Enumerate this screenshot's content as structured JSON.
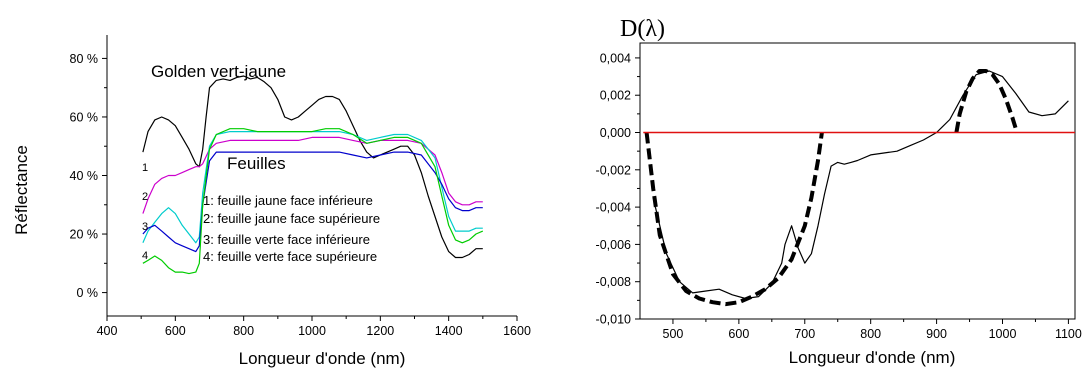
{
  "chart_data": [
    {
      "type": "line",
      "title": "",
      "xlabel": "Longueur d'onde (nm)",
      "ylabel": "Réflectance",
      "xlim": [
        400,
        1600
      ],
      "ylim": [
        -0.08,
        0.88
      ],
      "xticks": [
        400,
        600,
        800,
        1000,
        1200,
        1400,
        1600
      ],
      "xtick_labels": [
        "400",
        "600",
        "800",
        "1000",
        "1200",
        "1400",
        "1600"
      ],
      "yticks": [
        0,
        0.2,
        0.4,
        0.6,
        0.8
      ],
      "ytick_labels": [
        "0 %",
        "20 %",
        "40 %",
        "60 %",
        "80 %"
      ],
      "annotations": {
        "golden": "Golden vert-jaune",
        "feuilles": "Feuilles",
        "markers": [
          "1",
          "2",
          "3",
          "4"
        ],
        "legend": [
          "1: feuille jaune face inférieure",
          "2: feuille jaune face supérieure",
          "3: feuille verte face inférieure",
          "4: feuille verte face supérieure"
        ]
      },
      "series": [
        {
          "name": "Golden vert-jaune",
          "color": "#000000",
          "x": [
            505,
            520,
            540,
            560,
            580,
            600,
            620,
            640,
            660,
            670,
            680,
            690,
            700,
            720,
            740,
            760,
            780,
            800,
            820,
            840,
            860,
            880,
            900,
            920,
            940,
            960,
            980,
            1000,
            1020,
            1040,
            1060,
            1080,
            1100,
            1120,
            1140,
            1160,
            1180,
            1200,
            1220,
            1240,
            1260,
            1280,
            1300,
            1320,
            1340,
            1360,
            1380,
            1400,
            1420,
            1440,
            1460,
            1480,
            1500
          ],
          "y": [
            0.48,
            0.55,
            0.59,
            0.6,
            0.59,
            0.57,
            0.53,
            0.49,
            0.44,
            0.43,
            0.49,
            0.6,
            0.7,
            0.725,
            0.73,
            0.725,
            0.735,
            0.74,
            0.73,
            0.735,
            0.72,
            0.7,
            0.66,
            0.6,
            0.59,
            0.6,
            0.62,
            0.64,
            0.66,
            0.67,
            0.67,
            0.66,
            0.62,
            0.57,
            0.52,
            0.48,
            0.46,
            0.47,
            0.48,
            0.49,
            0.5,
            0.5,
            0.47,
            0.41,
            0.33,
            0.26,
            0.19,
            0.14,
            0.12,
            0.12,
            0.13,
            0.15,
            0.15
          ]
        },
        {
          "name": "1",
          "color": "#cc00cc",
          "x": [
            505,
            520,
            540,
            560,
            580,
            600,
            620,
            640,
            660,
            670,
            680,
            700,
            720,
            760,
            800,
            840,
            880,
            920,
            960,
            1000,
            1040,
            1080,
            1120,
            1160,
            1200,
            1240,
            1280,
            1320,
            1360,
            1380,
            1400,
            1420,
            1440,
            1460,
            1480,
            1500
          ],
          "y": [
            0.27,
            0.32,
            0.37,
            0.39,
            0.4,
            0.4,
            0.41,
            0.42,
            0.43,
            0.43,
            0.44,
            0.49,
            0.51,
            0.52,
            0.52,
            0.52,
            0.52,
            0.52,
            0.52,
            0.53,
            0.53,
            0.53,
            0.52,
            0.51,
            0.52,
            0.52,
            0.52,
            0.51,
            0.47,
            0.41,
            0.34,
            0.31,
            0.3,
            0.3,
            0.31,
            0.31
          ]
        },
        {
          "name": "2",
          "color": "#00cccc",
          "x": [
            505,
            520,
            540,
            560,
            580,
            600,
            620,
            640,
            660,
            670,
            680,
            700,
            720,
            760,
            800,
            840,
            880,
            920,
            960,
            1000,
            1040,
            1080,
            1120,
            1160,
            1200,
            1240,
            1280,
            1320,
            1360,
            1380,
            1400,
            1420,
            1440,
            1460,
            1480,
            1500
          ],
          "y": [
            0.17,
            0.21,
            0.24,
            0.27,
            0.29,
            0.27,
            0.23,
            0.2,
            0.17,
            0.19,
            0.34,
            0.5,
            0.54,
            0.55,
            0.55,
            0.55,
            0.55,
            0.55,
            0.55,
            0.55,
            0.55,
            0.55,
            0.54,
            0.52,
            0.53,
            0.54,
            0.54,
            0.52,
            0.46,
            0.36,
            0.26,
            0.21,
            0.21,
            0.21,
            0.22,
            0.22
          ]
        },
        {
          "name": "3",
          "color": "#0000cc",
          "x": [
            505,
            520,
            540,
            560,
            580,
            600,
            620,
            640,
            660,
            670,
            680,
            700,
            720,
            760,
            800,
            840,
            880,
            920,
            960,
            1000,
            1040,
            1080,
            1120,
            1160,
            1200,
            1240,
            1280,
            1320,
            1360,
            1380,
            1400,
            1420,
            1440,
            1460,
            1480,
            1500
          ],
          "y": [
            0.2,
            0.22,
            0.23,
            0.21,
            0.19,
            0.17,
            0.16,
            0.15,
            0.14,
            0.16,
            0.3,
            0.45,
            0.48,
            0.48,
            0.48,
            0.48,
            0.48,
            0.48,
            0.48,
            0.48,
            0.48,
            0.48,
            0.47,
            0.46,
            0.47,
            0.48,
            0.48,
            0.47,
            0.41,
            0.37,
            0.32,
            0.29,
            0.28,
            0.28,
            0.29,
            0.29
          ]
        },
        {
          "name": "4",
          "color": "#00cc00",
          "x": [
            505,
            520,
            540,
            560,
            580,
            600,
            620,
            640,
            660,
            670,
            680,
            700,
            720,
            760,
            800,
            840,
            880,
            920,
            960,
            1000,
            1040,
            1080,
            1120,
            1160,
            1200,
            1240,
            1280,
            1320,
            1360,
            1380,
            1400,
            1420,
            1440,
            1460,
            1480,
            1500
          ],
          "y": [
            0.1,
            0.11,
            0.125,
            0.11,
            0.085,
            0.07,
            0.07,
            0.065,
            0.07,
            0.1,
            0.3,
            0.49,
            0.54,
            0.56,
            0.56,
            0.55,
            0.55,
            0.55,
            0.55,
            0.55,
            0.56,
            0.56,
            0.54,
            0.51,
            0.52,
            0.53,
            0.53,
            0.51,
            0.43,
            0.33,
            0.23,
            0.18,
            0.17,
            0.18,
            0.2,
            0.21
          ]
        }
      ]
    },
    {
      "type": "line",
      "title": "D(λ)",
      "xlabel": "Longueur d'onde (nm)",
      "ylabel": "",
      "xlim": [
        450,
        1110
      ],
      "ylim": [
        -0.01,
        0.0048
      ],
      "xticks": [
        500,
        600,
        700,
        800,
        900,
        1000,
        1100
      ],
      "xtick_labels": [
        "500",
        "600",
        "700",
        "800",
        "900",
        "1000",
        "1100"
      ],
      "yticks": [
        -0.01,
        -0.008,
        -0.006,
        -0.004,
        -0.002,
        0,
        0.002,
        0.004
      ],
      "ytick_labels": [
        "-0,010",
        "-0,008",
        "-0,006",
        "-0,004",
        "-0,002",
        "0,000",
        "0,002",
        "0,004"
      ],
      "series": [
        {
          "name": "",
          "style": "solid",
          "color": "#000000",
          "x": [
            470,
            490,
            510,
            530,
            550,
            570,
            590,
            610,
            630,
            650,
            665,
            670,
            675,
            680,
            690,
            700,
            710,
            720,
            730,
            740,
            750,
            760,
            770,
            780,
            800,
            820,
            840,
            860,
            880,
            900,
            920,
            940,
            960,
            980,
            1000,
            1020,
            1040,
            1060,
            1080,
            1100
          ],
          "y": [
            -0.0035,
            -0.0065,
            -0.008,
            -0.0086,
            -0.0085,
            -0.0084,
            -0.0087,
            -0.0089,
            -0.0088,
            -0.0081,
            -0.007,
            -0.006,
            -0.0055,
            -0.005,
            -0.0062,
            -0.007,
            -0.0065,
            -0.005,
            -0.0033,
            -0.0018,
            -0.0016,
            -0.0017,
            -0.0016,
            -0.0015,
            -0.0012,
            -0.0011,
            -0.001,
            -0.0007,
            -0.0004,
            0.0,
            0.0007,
            0.002,
            0.0031,
            0.0033,
            0.003,
            0.0021,
            0.0011,
            0.0009,
            0.001,
            0.0017
          ]
        },
        {
          "name": "",
          "style": "dashed",
          "color": "#000000",
          "x": [
            460,
            470,
            480,
            500,
            520,
            540,
            560,
            580,
            600,
            620,
            640,
            660,
            680,
            700,
            710,
            720,
            726
          ],
          "y": [
            0.0,
            -0.003,
            -0.0055,
            -0.0076,
            -0.0085,
            -0.0089,
            -0.0091,
            -0.0092,
            -0.0091,
            -0.0088,
            -0.0084,
            -0.0078,
            -0.0068,
            -0.005,
            -0.0035,
            -0.0015,
            0.0
          ]
        },
        {
          "name": "",
          "style": "dashed",
          "color": "#000000",
          "x": [
            930,
            935,
            945,
            955,
            965,
            975,
            985,
            995,
            1005,
            1015,
            1022
          ],
          "y": [
            0.0,
            0.001,
            0.0022,
            0.0029,
            0.0033,
            0.0033,
            0.0031,
            0.0026,
            0.0018,
            0.0008,
            0.0
          ]
        },
        {
          "name": "",
          "style": "solid",
          "color": "#e01010",
          "x": [
            455,
            1110
          ],
          "y": [
            0,
            0
          ]
        }
      ]
    }
  ]
}
